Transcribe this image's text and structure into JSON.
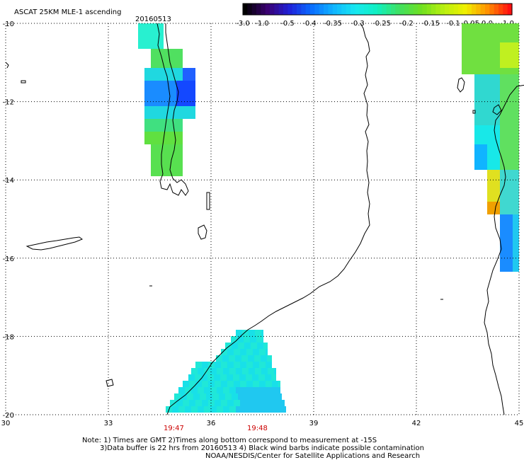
{
  "title": "ASCAT 25KM MLE-1 ascending",
  "date": "20160513",
  "colorbar": {
    "labels": [
      "-3.0",
      "-1.0",
      "-0.5",
      "-0.4",
      "-0.35",
      "-0.3",
      "-0.25",
      "-0.2",
      "-0.15",
      "-0.1",
      "-0.05",
      "0.0",
      "1.0"
    ],
    "colors": [
      "#000000",
      "#3a0070",
      "#2020d8",
      "#0a6cff",
      "#10b4ff",
      "#18e8f0",
      "#10f0c0",
      "#40e060",
      "#70e020",
      "#b8f010",
      "#f0f000",
      "#ff9000",
      "#ff1010"
    ]
  },
  "axes": {
    "lat_labels": [
      "-10",
      "-12",
      "-14",
      "-16",
      "-18",
      "-20"
    ],
    "lon_labels": [
      "30",
      "33",
      "36",
      "39",
      "42",
      "45"
    ]
  },
  "pass_times": [
    "19:47",
    "19:48"
  ],
  "notes": {
    "line1": "Note: 1) Times are GMT 2)Times along bottom correspond to measurement at -15S",
    "line2": "3)Data buffer is 22 hrs from 20160513 4) Black wind barbs indicate possible contamination",
    "line3": "NOAA/NESDIS/Center for Satellite Applications and Research"
  }
}
